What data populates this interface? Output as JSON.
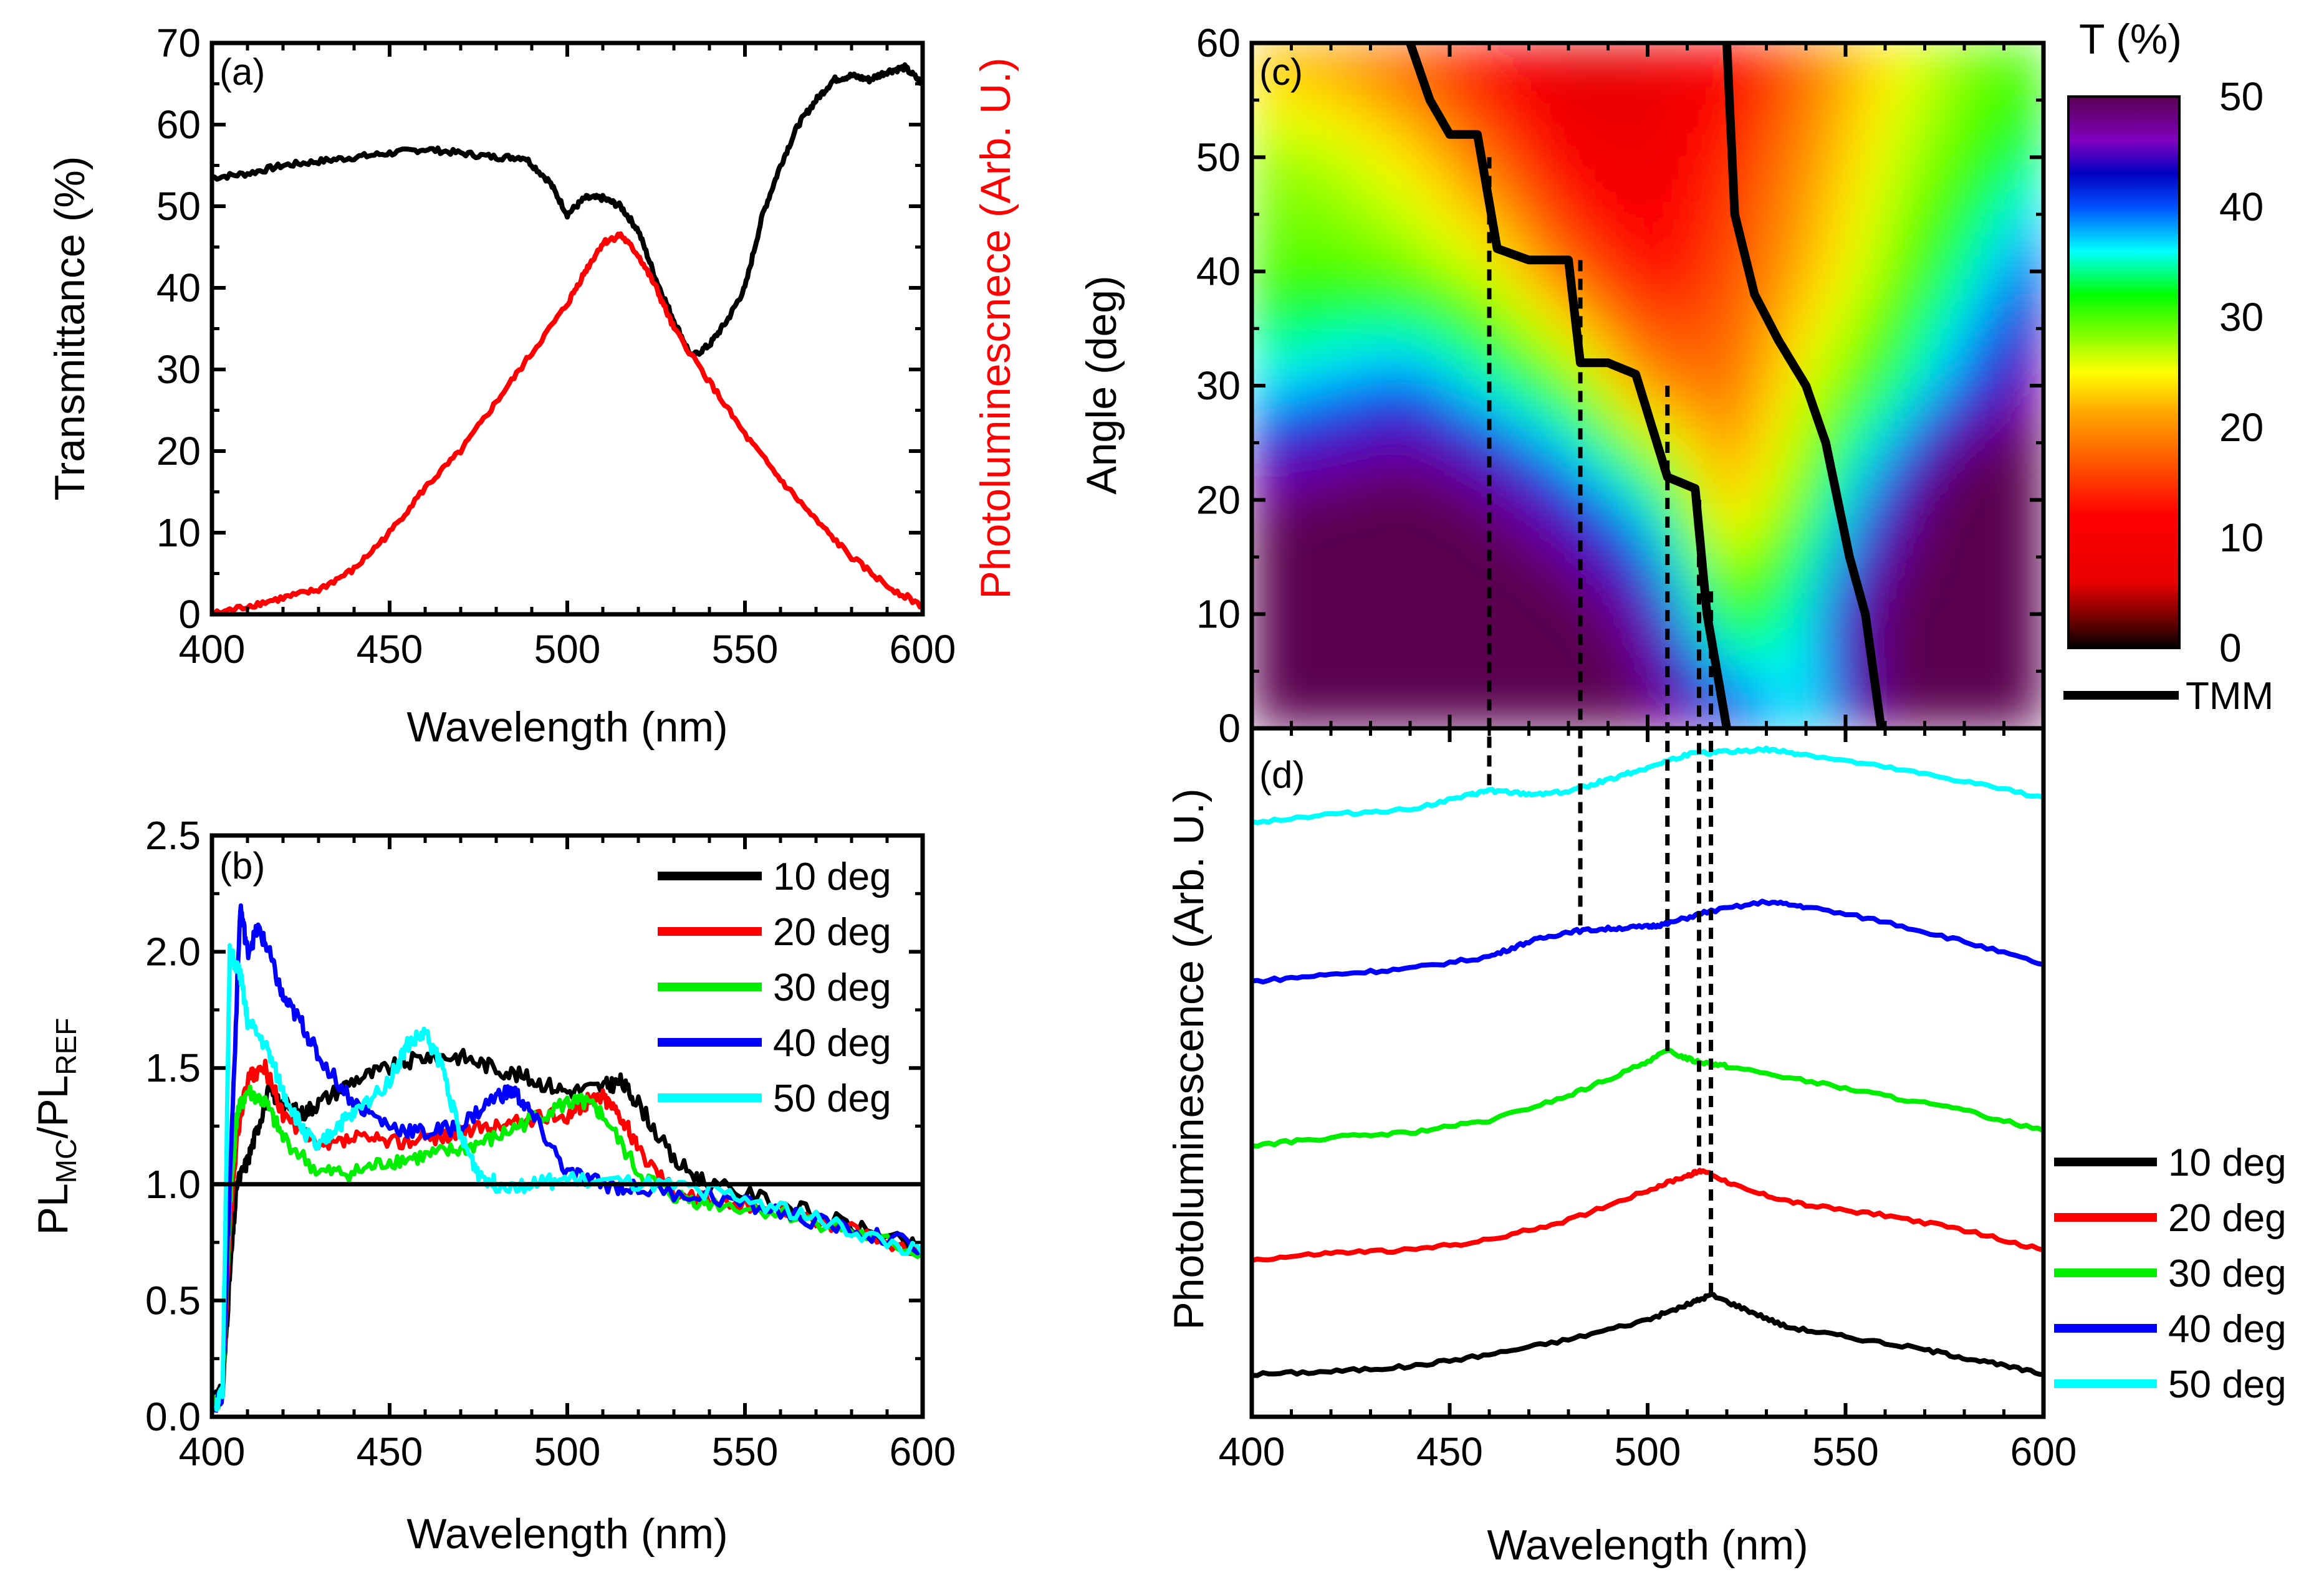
{
  "chart_data": [
    {
      "panel": "(a)",
      "type": "line",
      "xlabel": "Wavelength (nm)",
      "ylabel": "Transmittance (%)",
      "ylabel_right": "Photoluminescnece (Arb. U.)",
      "xlim": [
        400,
        600
      ],
      "ylim": [
        0,
        70
      ],
      "xticks": [
        400,
        450,
        500,
        550,
        600
      ],
      "yticks": [
        0,
        10,
        20,
        30,
        40,
        50,
        60,
        70
      ],
      "series": [
        {
          "color": "#000000",
          "axis": "left",
          "x": [
            400,
            410,
            420,
            430,
            440,
            450,
            460,
            470,
            480,
            488,
            495,
            500,
            505,
            510,
            515,
            520,
            525,
            530,
            535,
            540,
            545,
            550,
            555,
            560,
            565,
            570,
            575,
            580,
            585,
            590,
            595,
            600
          ],
          "y": [
            53.5,
            54,
            55,
            55.5,
            56,
            56.5,
            57,
            56.5,
            56,
            56,
            53,
            49,
            51,
            51,
            50,
            47,
            41,
            36,
            31.5,
            33,
            36,
            40,
            49,
            55,
            60,
            63,
            65.5,
            66,
            65.5,
            66.5,
            67,
            65
          ]
        },
        {
          "color": "#ff0000",
          "axis": "right",
          "x": [
            400,
            410,
            420,
            430,
            440,
            450,
            460,
            470,
            480,
            490,
            500,
            505,
            510,
            515,
            520,
            525,
            530,
            540,
            550,
            560,
            570,
            580,
            590,
            600
          ],
          "y": [
            0,
            1,
            2,
            3,
            5.5,
            10,
            15.5,
            20,
            26,
            32,
            38,
            42,
            45.5,
            46.5,
            44,
            40,
            35,
            28.5,
            22,
            16.5,
            11.5,
            7,
            3.5,
            1
          ]
        }
      ]
    },
    {
      "panel": "(b)",
      "type": "line",
      "xlabel": "Wavelength (nm)",
      "ylabel": "PL",
      "ylabel_sub1": "MC",
      "ylabel_mid": "/PL",
      "ylabel_sub2": "REF",
      "xlim": [
        400,
        600
      ],
      "ylim": [
        0,
        2.5
      ],
      "xticks": [
        400,
        450,
        500,
        550,
        600
      ],
      "yticks": [
        "0.0",
        "0.5",
        "1.0",
        "1.5",
        "2.0",
        "2.5"
      ],
      "reference_line": 1.0,
      "legend_position": "top-right",
      "series": [
        {
          "name": "10 deg",
          "color": "#000000",
          "x": [
            401,
            403,
            405,
            407,
            410,
            413,
            416,
            420,
            425,
            430,
            440,
            450,
            460,
            470,
            480,
            490,
            500,
            510,
            515,
            520,
            530,
            540,
            560,
            580,
            600
          ],
          "y": [
            0.1,
            0.1,
            0.6,
            1.0,
            1.1,
            1.25,
            1.4,
            1.35,
            1.3,
            1.35,
            1.45,
            1.5,
            1.55,
            1.55,
            1.5,
            1.45,
            1.4,
            1.42,
            1.44,
            1.35,
            1.1,
            1.0,
            0.92,
            0.82,
            0.72
          ]
        },
        {
          "name": "20 deg",
          "color": "#ff0000",
          "x": [
            401,
            403,
            405,
            407,
            410,
            415,
            420,
            430,
            440,
            450,
            460,
            470,
            480,
            490,
            500,
            505,
            510,
            515,
            520,
            530,
            540,
            560,
            580,
            600
          ],
          "y": [
            0.05,
            0.1,
            0.8,
            1.2,
            1.45,
            1.5,
            1.3,
            1.15,
            1.2,
            1.18,
            1.2,
            1.22,
            1.25,
            1.28,
            1.3,
            1.35,
            1.38,
            1.3,
            1.15,
            0.98,
            0.93,
            0.9,
            0.8,
            0.7
          ]
        },
        {
          "name": "30 deg",
          "color": "#00ee00",
          "x": [
            401,
            403,
            405,
            407,
            410,
            415,
            420,
            430,
            440,
            450,
            460,
            470,
            480,
            490,
            500,
            505,
            510,
            520,
            530,
            540,
            560,
            580,
            600
          ],
          "y": [
            0.05,
            0.1,
            0.9,
            1.3,
            1.4,
            1.35,
            1.2,
            1.05,
            1.05,
            1.1,
            1.12,
            1.15,
            1.2,
            1.28,
            1.35,
            1.35,
            1.3,
            1.05,
            0.95,
            0.92,
            0.88,
            0.8,
            0.7
          ]
        },
        {
          "name": "40 deg",
          "color": "#0000ff",
          "x": [
            401,
            403,
            405,
            408,
            410,
            413,
            416,
            420,
            425,
            430,
            440,
            450,
            460,
            470,
            480,
            485,
            490,
            500,
            510,
            520,
            540,
            560,
            580,
            600
          ],
          "y": [
            0.05,
            0.1,
            1.0,
            2.2,
            2.0,
            2.1,
            2.0,
            1.8,
            1.7,
            1.55,
            1.35,
            1.25,
            1.22,
            1.25,
            1.38,
            1.4,
            1.3,
            1.05,
            1.0,
            0.98,
            0.95,
            0.88,
            0.8,
            0.73
          ]
        },
        {
          "name": "50 deg",
          "color": "#00ffff",
          "x": [
            401,
            403,
            405,
            408,
            410,
            415,
            420,
            425,
            430,
            435,
            440,
            450,
            455,
            460,
            465,
            470,
            475,
            480,
            490,
            500,
            520,
            540,
            560,
            580,
            600
          ],
          "y": [
            0.05,
            0.1,
            2.0,
            1.9,
            1.7,
            1.6,
            1.4,
            1.25,
            1.15,
            1.25,
            1.3,
            1.45,
            1.6,
            1.65,
            1.5,
            1.2,
            1.05,
            1.0,
            1.0,
            1.02,
            1.0,
            0.97,
            0.9,
            0.8,
            0.7
          ]
        }
      ]
    },
    {
      "panel": "(c)",
      "type": "heatmap",
      "ylabel": "Angle (deg)",
      "xlim": [
        400,
        600
      ],
      "ylim": [
        0,
        60
      ],
      "yticks": [
        0,
        10,
        20,
        30,
        40,
        50,
        60
      ],
      "colorbar_title": "T (%)",
      "colorbar_range": [
        0,
        50
      ],
      "colorbar_ticks": [
        0,
        10,
        20,
        30,
        40,
        50
      ],
      "contour_legend": "TMM",
      "angles": [
        0,
        10,
        20,
        30,
        40,
        50,
        60
      ],
      "wavelengths": [
        400,
        420,
        440,
        460,
        480,
        500,
        520,
        540,
        560,
        580,
        600
      ],
      "transmittance": [
        [
          55,
          56,
          57,
          57,
          56,
          50,
          44,
          35,
          50,
          58,
          60
        ],
        [
          55,
          56,
          57,
          56,
          52,
          45,
          30,
          36,
          50,
          58,
          58
        ],
        [
          48,
          50,
          52,
          48,
          42,
          35,
          22,
          30,
          42,
          55,
          55
        ],
        [
          36,
          38,
          40,
          35,
          30,
          20,
          18,
          26,
          32,
          40,
          48
        ],
        [
          30,
          30,
          29,
          26,
          18,
          12,
          16,
          22,
          28,
          34,
          42
        ],
        [
          28,
          27,
          24,
          18,
          10,
          8,
          14,
          20,
          26,
          30,
          34
        ],
        [
          22,
          20,
          16,
          10,
          5,
          6,
          10,
          18,
          24,
          28,
          30
        ]
      ],
      "tmm_contours": [
        {
          "x": [
            440,
            445,
            450,
            457,
            462,
            470,
            480,
            483,
            490,
            497,
            505,
            512,
            515,
            520
          ],
          "y": [
            60,
            55,
            52,
            52,
            42,
            41,
            41,
            32,
            32,
            31,
            22,
            21,
            10,
            0
          ]
        },
        {
          "x": [
            520,
            522,
            527,
            533,
            540,
            545,
            551,
            555,
            559
          ],
          "y": [
            60,
            45,
            38,
            34,
            30,
            25,
            15,
            10,
            0
          ]
        }
      ],
      "guide_wavelengths": [
        460,
        483,
        505,
        513,
        516
      ]
    },
    {
      "panel": "(d)",
      "type": "line",
      "xlabel": "Wavelength (nm)",
      "ylabel": "Photoluminescence (Arb. U.)",
      "xlim": [
        400,
        600
      ],
      "xticks": [
        400,
        450,
        500,
        550,
        600
      ],
      "stacked_offsets": true,
      "legend_position": "bottom-right",
      "series": [
        {
          "name": "10 deg",
          "color": "#000000",
          "x": [
            400,
            420,
            440,
            460,
            480,
            500,
            510,
            516,
            525,
            535,
            550,
            570,
            585,
            600
          ],
          "y": [
            1,
            1.3,
            1.8,
            3,
            4.5,
            6.5,
            8,
            9,
            7.5,
            5.8,
            4.8,
            3.5,
            2.3,
            1
          ]
        },
        {
          "name": "20 deg",
          "color": "#ff0000",
          "x": [
            400,
            420,
            440,
            460,
            480,
            500,
            510,
            514,
            525,
            540,
            560,
            580,
            600
          ],
          "y": [
            12.5,
            13.2,
            13.5,
            14.5,
            16.5,
            19.5,
            21,
            21.5,
            19.5,
            18,
            17,
            15.5,
            13.5
          ]
        },
        {
          "name": "30 deg",
          "color": "#00ee00",
          "x": [
            400,
            420,
            440,
            460,
            480,
            495,
            505,
            512,
            520,
            540,
            560,
            580,
            600
          ],
          "y": [
            24,
            24.8,
            25.3,
            26.5,
            29,
            31.5,
            33.5,
            32.5,
            32,
            30.5,
            29,
            27.5,
            25.5
          ]
        },
        {
          "name": "40 deg",
          "color": "#0000ff",
          "x": [
            400,
            420,
            440,
            460,
            470,
            480,
            490,
            500,
            505,
            515,
            530,
            540,
            560,
            580,
            600
          ],
          "y": [
            40.5,
            41.2,
            41.8,
            43,
            44.5,
            45.5,
            45.8,
            46,
            46.3,
            47.5,
            48.5,
            48,
            46.5,
            44.5,
            42.2
          ]
        },
        {
          "name": "50 deg",
          "color": "#00ffff",
          "x": [
            400,
            420,
            440,
            455,
            460,
            470,
            480,
            490,
            500,
            510,
            520,
            530,
            540,
            560,
            580,
            600
          ],
          "y": [
            56.5,
            57.3,
            57.8,
            59.2,
            59.7,
            59.3,
            59.6,
            60.8,
            62,
            63.3,
            63.6,
            63.8,
            63.3,
            62,
            60.6,
            59
          ]
        }
      ],
      "y_display_range": [
        0,
        65
      ]
    }
  ]
}
